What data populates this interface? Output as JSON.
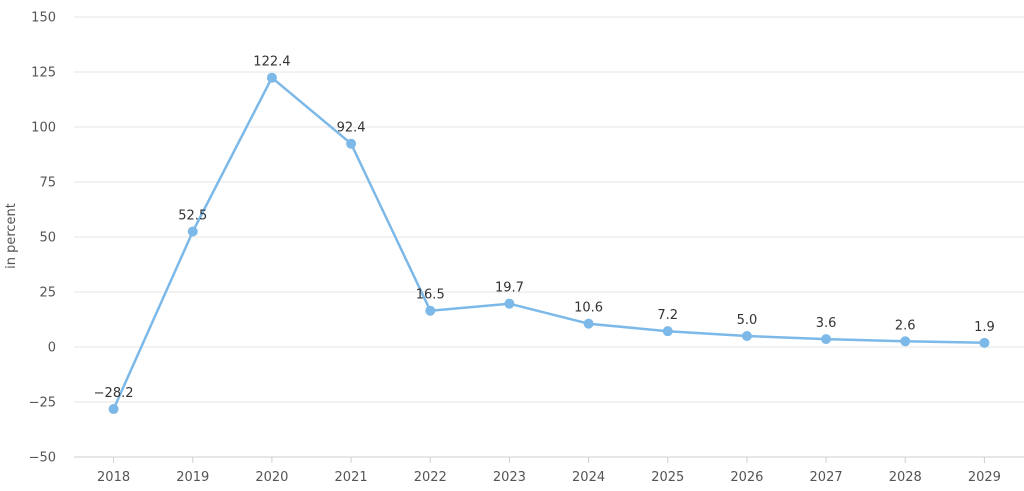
{
  "chart_data": {
    "type": "line",
    "ylabel": "in percent",
    "xlabel": "",
    "categories": [
      "2018",
      "2019",
      "2020",
      "2021",
      "2022",
      "2023",
      "2024",
      "2025",
      "2026",
      "2027",
      "2028",
      "2029"
    ],
    "series": [
      {
        "values": [
          -28.2,
          52.5,
          122.4,
          92.4,
          16.5,
          19.7,
          10.6,
          7.2,
          5.0,
          3.6,
          2.6,
          1.9
        ],
        "labels": [
          "−28.2",
          "52.5",
          "122.4",
          "92.4",
          "16.5",
          "19.7",
          "10.6",
          "7.2",
          "5.0",
          "3.6",
          "2.6",
          "1.9"
        ],
        "color": "#7cb9e8"
      }
    ],
    "ylim": [
      -50,
      150
    ],
    "yticks": [
      -50,
      -25,
      0,
      25,
      50,
      75,
      100,
      125,
      150
    ],
    "ytick_labels": [
      "−50",
      "−25",
      "0",
      "25",
      "50",
      "75",
      "100",
      "125",
      "150"
    ],
    "grid": true,
    "grid_color": "#e6e6e6",
    "legend": "none"
  }
}
